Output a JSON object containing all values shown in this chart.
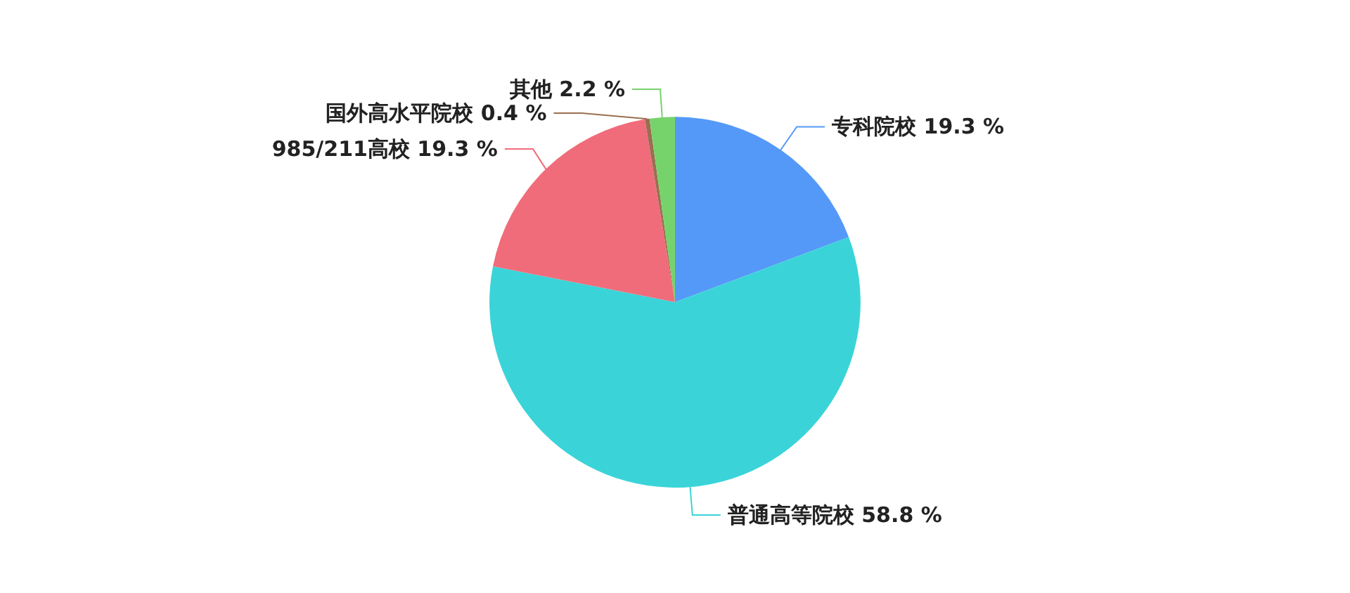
{
  "chart_data": {
    "type": "pie",
    "categories": [
      "专科院校",
      "普通高等院校",
      "985/211高校",
      "国外高水平院校",
      "其他"
    ],
    "values": [
      19.3,
      58.8,
      19.3,
      0.4,
      2.2
    ],
    "value_labels": [
      "19.3 %",
      "58.8 %",
      "19.3 %",
      "0.4 %",
      "2.2 %"
    ],
    "colors": [
      "#5599f8",
      "#3ad4d8",
      "#f06c7a",
      "#9b6e52",
      "#76d36c"
    ],
    "legend": false
  }
}
